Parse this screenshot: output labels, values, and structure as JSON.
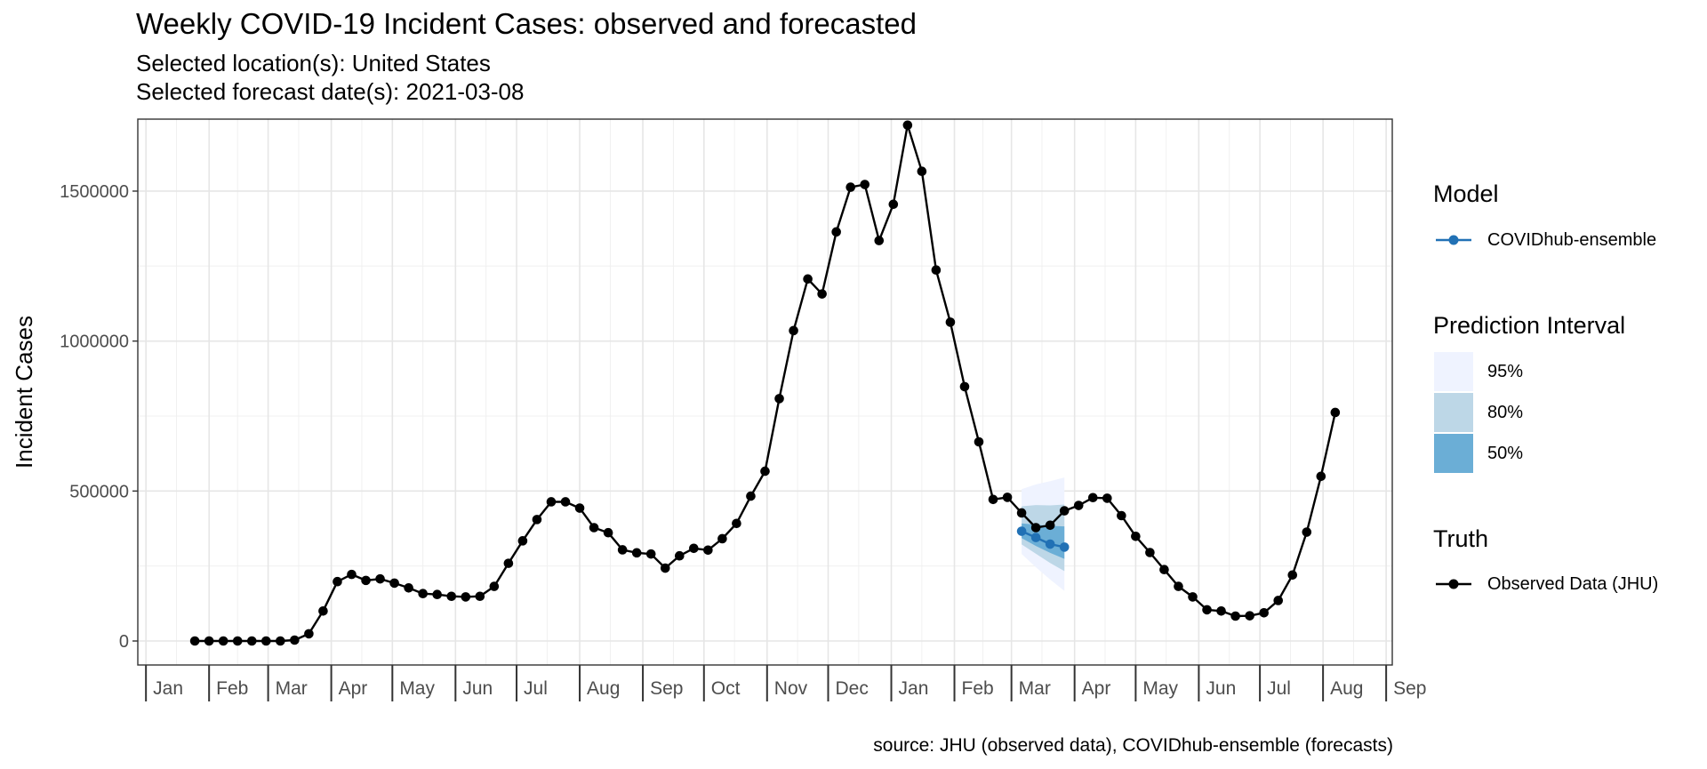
{
  "chart_data": {
    "type": "line",
    "title": "Weekly COVID-19 Incident Cases: observed and forecasted",
    "subtitle_lines": [
      "Selected location(s): United States",
      "Selected forecast date(s): 2021-03-08"
    ],
    "caption": "source: JHU (observed data), COVIDhub-ensemble (forecasts)",
    "ylabel": "Incident Cases",
    "xlabel": "",
    "ylim": [
      -80000,
      1740000
    ],
    "yticks": [
      0,
      500000,
      1000000,
      1500000
    ],
    "ytick_labels": [
      "0",
      "500000",
      "1000000",
      "1500000"
    ],
    "xlim": [
      "2019-12-28",
      "2021-09-04"
    ],
    "month_ticks": [
      {
        "date": "2020-01-01",
        "label": "Jan"
      },
      {
        "date": "2020-02-01",
        "label": "Feb"
      },
      {
        "date": "2020-03-01",
        "label": "Mar"
      },
      {
        "date": "2020-04-01",
        "label": "Apr"
      },
      {
        "date": "2020-05-01",
        "label": "May"
      },
      {
        "date": "2020-06-01",
        "label": "Jun"
      },
      {
        "date": "2020-07-01",
        "label": "Jul"
      },
      {
        "date": "2020-08-01",
        "label": "Aug"
      },
      {
        "date": "2020-09-01",
        "label": "Sep"
      },
      {
        "date": "2020-10-01",
        "label": "Oct"
      },
      {
        "date": "2020-11-01",
        "label": "Nov"
      },
      {
        "date": "2020-12-01",
        "label": "Dec"
      },
      {
        "date": "2021-01-01",
        "label": "Jan"
      },
      {
        "date": "2021-02-01",
        "label": "Feb"
      },
      {
        "date": "2021-03-01",
        "label": "Mar"
      },
      {
        "date": "2021-04-01",
        "label": "Apr"
      },
      {
        "date": "2021-05-01",
        "label": "May"
      },
      {
        "date": "2021-06-01",
        "label": "Jun"
      },
      {
        "date": "2021-07-01",
        "label": "Jul"
      },
      {
        "date": "2021-08-01",
        "label": "Aug"
      },
      {
        "date": "2021-09-01",
        "label": "Sep"
      }
    ],
    "grid": true,
    "legend_position": "right",
    "series": [
      {
        "name": "Observed Data (JHU)",
        "color": "#000000",
        "points": [
          {
            "date": "2020-01-25",
            "value": 0
          },
          {
            "date": "2020-02-01",
            "value": 0
          },
          {
            "date": "2020-02-08",
            "value": 0
          },
          {
            "date": "2020-02-15",
            "value": 0
          },
          {
            "date": "2020-02-22",
            "value": 0
          },
          {
            "date": "2020-02-29",
            "value": 0
          },
          {
            "date": "2020-03-07",
            "value": 0
          },
          {
            "date": "2020-03-14",
            "value": 3000
          },
          {
            "date": "2020-03-21",
            "value": 24000
          },
          {
            "date": "2020-03-28",
            "value": 100000
          },
          {
            "date": "2020-04-04",
            "value": 198000
          },
          {
            "date": "2020-04-11",
            "value": 222000
          },
          {
            "date": "2020-04-18",
            "value": 202000
          },
          {
            "date": "2020-04-25",
            "value": 207000
          },
          {
            "date": "2020-05-02",
            "value": 193000
          },
          {
            "date": "2020-05-09",
            "value": 177000
          },
          {
            "date": "2020-05-16",
            "value": 158000
          },
          {
            "date": "2020-05-23",
            "value": 155000
          },
          {
            "date": "2020-05-30",
            "value": 149000
          },
          {
            "date": "2020-06-06",
            "value": 147000
          },
          {
            "date": "2020-06-13",
            "value": 149000
          },
          {
            "date": "2020-06-20",
            "value": 182000
          },
          {
            "date": "2020-06-27",
            "value": 259000
          },
          {
            "date": "2020-07-04",
            "value": 334000
          },
          {
            "date": "2020-07-11",
            "value": 405000
          },
          {
            "date": "2020-07-18",
            "value": 464000
          },
          {
            "date": "2020-07-25",
            "value": 464000
          },
          {
            "date": "2020-08-01",
            "value": 443000
          },
          {
            "date": "2020-08-08",
            "value": 378000
          },
          {
            "date": "2020-08-15",
            "value": 361000
          },
          {
            "date": "2020-08-22",
            "value": 304000
          },
          {
            "date": "2020-08-29",
            "value": 294000
          },
          {
            "date": "2020-09-05",
            "value": 290000
          },
          {
            "date": "2020-09-12",
            "value": 243000
          },
          {
            "date": "2020-09-19",
            "value": 284000
          },
          {
            "date": "2020-09-26",
            "value": 309000
          },
          {
            "date": "2020-10-03",
            "value": 303000
          },
          {
            "date": "2020-10-10",
            "value": 341000
          },
          {
            "date": "2020-10-17",
            "value": 392000
          },
          {
            "date": "2020-10-24",
            "value": 483000
          },
          {
            "date": "2020-10-31",
            "value": 566000
          },
          {
            "date": "2020-11-07",
            "value": 808000
          },
          {
            "date": "2020-11-14",
            "value": 1035000
          },
          {
            "date": "2020-11-21",
            "value": 1207000
          },
          {
            "date": "2020-11-28",
            "value": 1157000
          },
          {
            "date": "2020-12-05",
            "value": 1364000
          },
          {
            "date": "2020-12-12",
            "value": 1513000
          },
          {
            "date": "2020-12-19",
            "value": 1522000
          },
          {
            "date": "2020-12-26",
            "value": 1335000
          },
          {
            "date": "2021-01-02",
            "value": 1456000
          },
          {
            "date": "2021-01-09",
            "value": 1720000
          },
          {
            "date": "2021-01-16",
            "value": 1566000
          },
          {
            "date": "2021-01-23",
            "value": 1237000
          },
          {
            "date": "2021-01-30",
            "value": 1063000
          },
          {
            "date": "2021-02-06",
            "value": 848000
          },
          {
            "date": "2021-02-13",
            "value": 664000
          },
          {
            "date": "2021-02-20",
            "value": 472000
          },
          {
            "date": "2021-02-27",
            "value": 479000
          },
          {
            "date": "2021-03-06",
            "value": 427000
          },
          {
            "date": "2021-03-13",
            "value": 378000
          },
          {
            "date": "2021-03-20",
            "value": 386000
          },
          {
            "date": "2021-03-27",
            "value": 434000
          },
          {
            "date": "2021-04-03",
            "value": 452000
          },
          {
            "date": "2021-04-10",
            "value": 478000
          },
          {
            "date": "2021-04-17",
            "value": 476000
          },
          {
            "date": "2021-04-24",
            "value": 418000
          },
          {
            "date": "2021-05-01",
            "value": 349000
          },
          {
            "date": "2021-05-08",
            "value": 295000
          },
          {
            "date": "2021-05-15",
            "value": 238000
          },
          {
            "date": "2021-05-22",
            "value": 182000
          },
          {
            "date": "2021-05-29",
            "value": 147000
          },
          {
            "date": "2021-06-05",
            "value": 104000
          },
          {
            "date": "2021-06-12",
            "value": 100000
          },
          {
            "date": "2021-06-19",
            "value": 83000
          },
          {
            "date": "2021-06-26",
            "value": 84000
          },
          {
            "date": "2021-07-03",
            "value": 94000
          },
          {
            "date": "2021-07-10",
            "value": 135000
          },
          {
            "date": "2021-07-17",
            "value": 220000
          },
          {
            "date": "2021-07-24",
            "value": 363000
          },
          {
            "date": "2021-07-31",
            "value": 549000
          },
          {
            "date": "2021-08-07",
            "value": 762000
          }
        ]
      },
      {
        "name": "COVIDhub-ensemble",
        "color": "#2171b5",
        "points": [
          {
            "date": "2021-03-06",
            "value": 366000
          },
          {
            "date": "2021-03-13",
            "value": 345000
          },
          {
            "date": "2021-03-20",
            "value": 323000
          },
          {
            "date": "2021-03-27",
            "value": 313000
          }
        ]
      }
    ],
    "forecast_intervals": {
      "dates": [
        "2021-03-06",
        "2021-03-13",
        "2021-03-20",
        "2021-03-27"
      ],
      "bands": [
        {
          "level": "95%",
          "color": "#eff3ff",
          "lower": [
            290000,
            246000,
            205000,
            167000
          ],
          "upper": [
            506000,
            522000,
            533000,
            545000
          ]
        },
        {
          "level": "80%",
          "color": "#bdd7e7",
          "lower": [
            322000,
            291000,
            260000,
            233000
          ],
          "upper": [
            449000,
            453000,
            452000,
            455000
          ]
        },
        {
          "level": "50%",
          "color": "#6baed6",
          "lower": [
            343000,
            317000,
            294000,
            274000
          ],
          "upper": [
            392000,
            388000,
            384000,
            382000
          ]
        }
      ]
    },
    "legend": {
      "model_title": "Model",
      "model_entries": [
        {
          "label": "COVIDhub-ensemble",
          "color": "#2171b5"
        }
      ],
      "interval_title": "Prediction Interval",
      "interval_entries": [
        {
          "label": "95%",
          "color": "#eff3ff"
        },
        {
          "label": "80%",
          "color": "#bdd7e7"
        },
        {
          "label": "50%",
          "color": "#6baed6"
        }
      ],
      "truth_title": "Truth",
      "truth_entries": [
        {
          "label": "Observed Data (JHU)",
          "color": "#000000"
        }
      ]
    }
  }
}
